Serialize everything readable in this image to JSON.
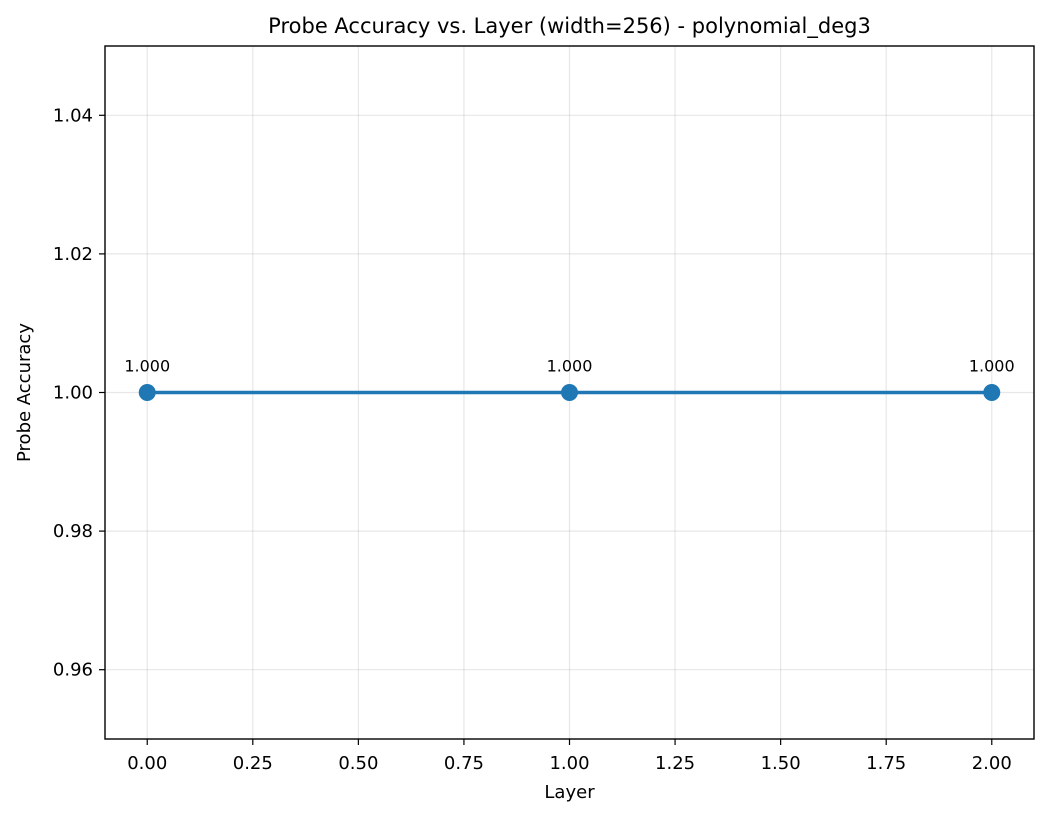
{
  "chart_data": {
    "type": "line",
    "title": "Probe Accuracy vs. Layer (width=256) - polynomial_deg3",
    "xlabel": "Layer",
    "ylabel": "Probe Accuracy",
    "xlim": [
      -0.1,
      2.1
    ],
    "ylim": [
      0.95,
      1.05
    ],
    "xticks": [
      0.0,
      0.25,
      0.5,
      0.75,
      1.0,
      1.25,
      1.5,
      1.75,
      2.0
    ],
    "xtick_labels": [
      "0.00",
      "0.25",
      "0.50",
      "0.75",
      "1.00",
      "1.25",
      "1.50",
      "1.75",
      "2.00"
    ],
    "yticks": [
      0.96,
      0.98,
      1.0,
      1.02,
      1.04
    ],
    "ytick_labels": [
      "0.96",
      "0.98",
      "1.00",
      "1.02",
      "1.04"
    ],
    "grid": true,
    "series": [
      {
        "color": "#1f77b4",
        "marker": "circle",
        "x": [
          0,
          1,
          2
        ],
        "y": [
          1.0,
          1.0,
          1.0
        ],
        "labels": [
          "1.000",
          "1.000",
          "1.000"
        ]
      }
    ]
  }
}
